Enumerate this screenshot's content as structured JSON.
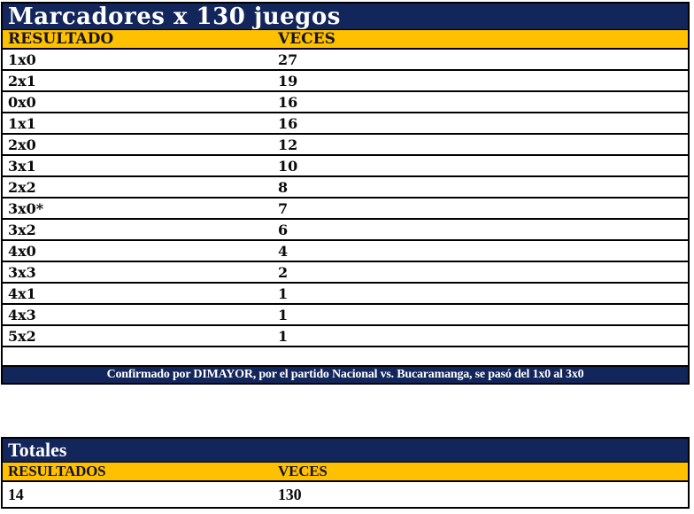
{
  "colors": {
    "navy": "#12265C",
    "gold": "#FFC000",
    "header_text": "#141428",
    "title_text": "#FFFFFF",
    "cell_text": "#0A0A0A"
  },
  "marcadores": {
    "title": "Marcadores x 130 juegos",
    "columns": [
      "RESULTADO",
      "VECES"
    ],
    "rows": [
      [
        "1x0",
        "27"
      ],
      [
        "2x1",
        "19"
      ],
      [
        "0x0",
        "16"
      ],
      [
        "1x1",
        "16"
      ],
      [
        "2x0",
        "12"
      ],
      [
        "3x1",
        "10"
      ],
      [
        "2x2",
        "8"
      ],
      [
        "3x0*",
        "7"
      ],
      [
        "3x2",
        "6"
      ],
      [
        "4x0",
        "4"
      ],
      [
        "3x3",
        "2"
      ],
      [
        "4x1",
        "1"
      ],
      [
        "4x3",
        "1"
      ],
      [
        "5x2",
        "1"
      ]
    ],
    "note": "Confirmado por DIMAYOR, por el partido Nacional vs. Bucaramanga, se pasó del 1x0 al 3x0"
  },
  "totales": {
    "title": "Totales",
    "columns": [
      "RESULTADOS",
      "VECES"
    ],
    "rows": [
      [
        "14",
        "130"
      ]
    ]
  },
  "chart_data": {
    "type": "table",
    "title": "Marcadores x 130 juegos",
    "columns": [
      "RESULTADO",
      "VECES"
    ],
    "categories": [
      "1x0",
      "2x1",
      "0x0",
      "1x1",
      "2x0",
      "3x1",
      "2x2",
      "3x0*",
      "3x2",
      "4x0",
      "3x3",
      "4x1",
      "4x3",
      "5x2"
    ],
    "values": [
      27,
      19,
      16,
      16,
      12,
      10,
      8,
      7,
      6,
      4,
      2,
      1,
      1,
      1
    ],
    "annotations": [
      "Confirmado por DIMAYOR, por el partido Nacional vs. Bucaramanga, se pasó del 1x0 al 3x0"
    ],
    "totals": {
      "distinct_results": 14,
      "total_games": 130
    }
  }
}
